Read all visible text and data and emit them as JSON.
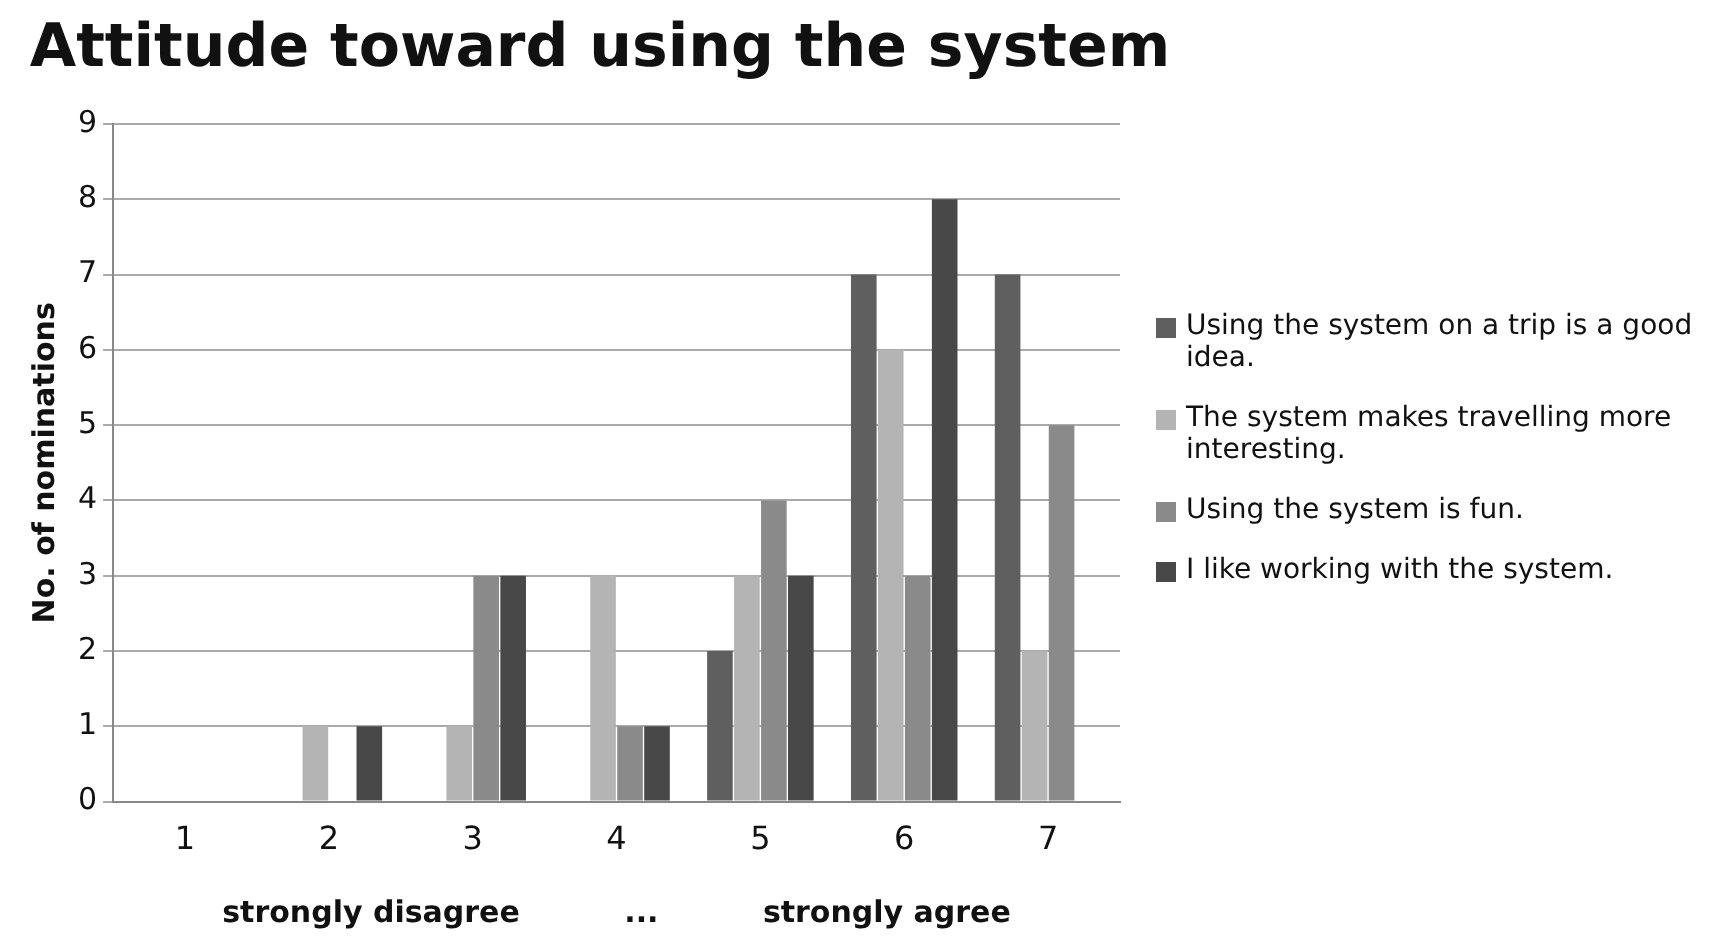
{
  "chart_data": {
    "type": "bar",
    "title": "Attitude toward using the system",
    "xlabel": "strongly disagree          ...          strongly agree",
    "ylabel": "No. of nominations",
    "categories": [
      "1",
      "2",
      "3",
      "4",
      "5",
      "6",
      "7"
    ],
    "series": [
      {
        "name": "Using the system on a trip is a good idea.",
        "color": "#5f5f5f",
        "values": [
          0,
          0,
          0,
          0,
          2,
          7,
          7
        ]
      },
      {
        "name": "The system makes travelling more interesting.",
        "color": "#b4b4b4",
        "values": [
          0,
          1,
          1,
          3,
          3,
          6,
          2
        ]
      },
      {
        "name": "Using the system is fun.",
        "color": "#8a8a8a",
        "values": [
          0,
          0,
          3,
          1,
          4,
          3,
          5
        ]
      },
      {
        "name": "I like working with the system.",
        "color": "#484848",
        "values": [
          0,
          1,
          3,
          1,
          3,
          8,
          0
        ]
      }
    ],
    "ylim": [
      0,
      9
    ],
    "yticks": [
      0,
      1,
      2,
      3,
      4,
      5,
      6,
      7,
      8,
      9
    ],
    "grid": "y",
    "legend": "right"
  }
}
